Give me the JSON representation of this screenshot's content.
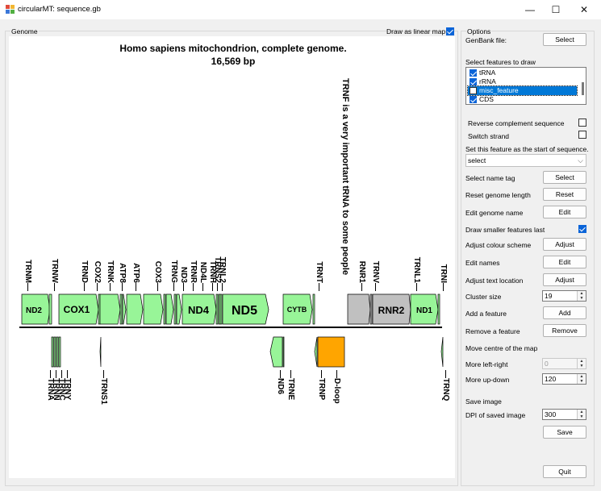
{
  "window": {
    "title": "circularMT: sequence.gb"
  },
  "genome_group": {
    "legend": "Genome"
  },
  "linear_toggle": {
    "label": "Draw as linear map",
    "checked": true
  },
  "map": {
    "title": "Homo sapiens mitochondrion, complete genome.",
    "length": "16,569 bp",
    "annotation": "TRNF is a very important tRNA to some people",
    "top_labels": [
      "TRNM",
      "TRNW",
      "TRND",
      "COX2",
      "TRNK",
      "ATP8",
      "ATP6",
      "COX3",
      "TRNG",
      "ND3",
      "TRNR",
      "ND4L",
      "TRNH",
      "TRNS2",
      "TRNL2",
      "TRNT",
      "RNR1",
      "TRNV",
      "TRNL1",
      "TRNI"
    ],
    "bottom_labels": [
      "TRNA",
      "TRNN",
      "TRNC",
      "TRNY",
      "TRNS1",
      "ND6",
      "TRNE",
      "TRNP",
      "D-loop",
      "TRNQ"
    ],
    "box_labels": [
      "ND2",
      "COX1",
      "ND4",
      "ND5",
      "CYTB",
      "RNR2",
      "ND1"
    ],
    "colors": {
      "gene": "#98f598",
      "rrna": "#c0c0c0",
      "dloop": "#ffa500"
    }
  },
  "options": {
    "legend": "Options",
    "genbank_label": "GenBank file:",
    "genbank_button": "Select",
    "features_label": "Select features to draw",
    "features": [
      {
        "label": "tRNA",
        "checked": true
      },
      {
        "label": "rRNA",
        "checked": true
      },
      {
        "label": "misc_feature",
        "checked": false
      },
      {
        "label": "CDS",
        "checked": true
      }
    ],
    "reverse_label": "Reverse complement sequence",
    "switch_label": "Switch strand",
    "start_label": "Set this feature as the start of sequence.",
    "start_value": "select",
    "name_tag_label": "Select name tag",
    "name_tag_button": "Select",
    "reset_len_label": "Reset genome length",
    "reset_len_button": "Reset",
    "edit_name_label": "Edit genome name",
    "edit_name_button": "Edit",
    "smaller_last_label": "Draw smaller features last",
    "colour_label": "Adjust colour scheme",
    "colour_button": "Adjust",
    "edit_names_label": "Edit names",
    "edit_names_button": "Edit",
    "text_loc_label": "Adjust text location",
    "text_loc_button": "Adjust",
    "cluster_label": "Cluster size",
    "cluster_value": "19",
    "add_feature_label": "Add a feature",
    "add_feature_button": "Add",
    "remove_feature_label": "Remove a feature",
    "remove_feature_button": "Remove",
    "move_centre_label": "Move centre of the map",
    "left_right_label": "More left-right",
    "left_right_value": "0",
    "up_down_label": "More up-down",
    "up_down_value": "120",
    "save_image_label": "Save image",
    "dpi_label": "DPI of saved image",
    "dpi_value": "300",
    "save_button": "Save",
    "quit_button": "Quit"
  }
}
